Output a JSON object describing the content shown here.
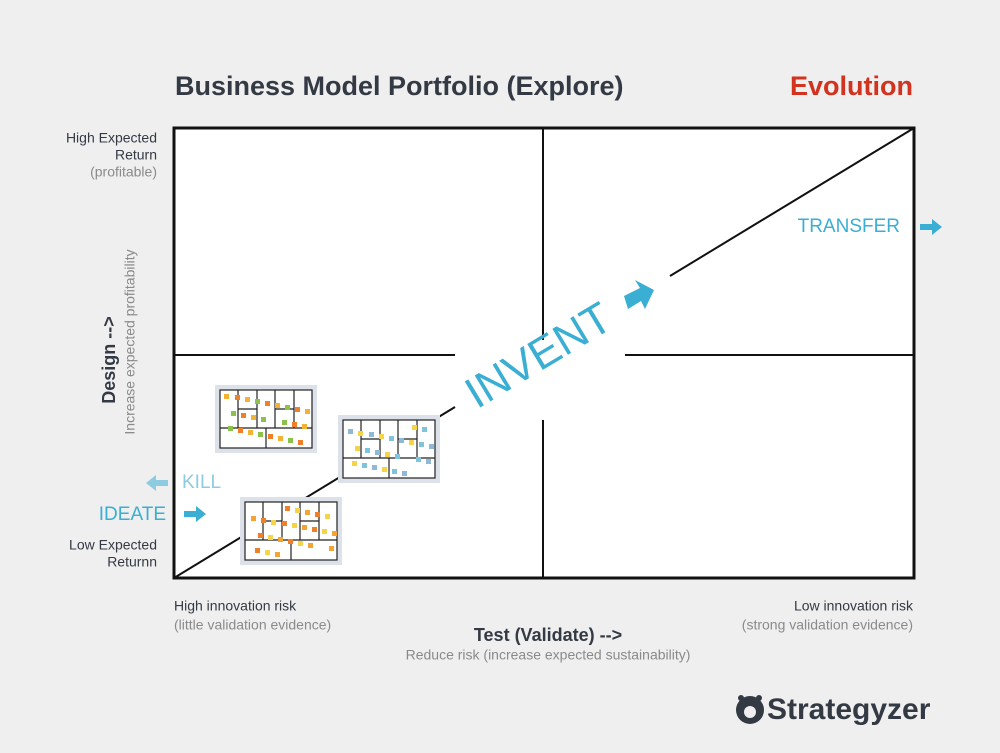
{
  "header": {
    "title": "Business Model Portfolio (Explore)",
    "tag": "Evolution"
  },
  "y_axis": {
    "top_label": [
      "High Expected",
      "Return"
    ],
    "top_note": "(profitable)",
    "title": "Design -->",
    "subtitle": "Increase expected profitability",
    "bottom_label": [
      "Low Expected",
      "Returnn"
    ]
  },
  "x_axis": {
    "left_label": "High innovation risk",
    "left_note": "(little validation evidence)",
    "right_label": "Low innovation risk",
    "right_note": "(strong validation evidence)",
    "title": "Test (Validate) -->",
    "subtitle": "Reduce risk (increase expected sustainability)"
  },
  "stages": {
    "kill": "KILL",
    "ideate": "IDEATE",
    "invent": "INVENT",
    "transfer": "TRANSFER"
  },
  "logo": "Strategyzer"
}
